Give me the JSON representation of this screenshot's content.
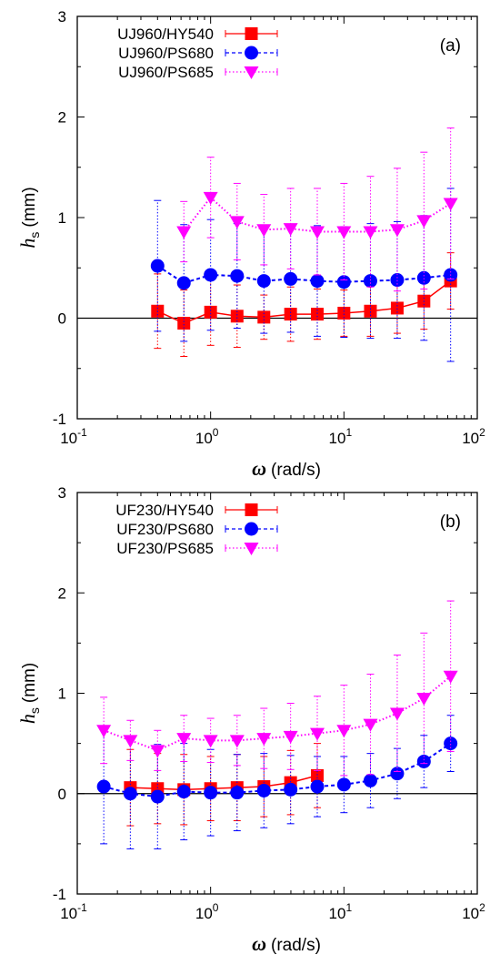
{
  "chart_data": [
    {
      "type": "scatter",
      "panel_label": "(a)",
      "xlabel": "ω",
      "xlabel_unit": "(rad/s)",
      "ylabel": "h",
      "ylabel_sub": "s",
      "ylabel_unit": "(mm)",
      "x_scale": "log",
      "xlim": [
        0.1,
        100
      ],
      "ylim": [
        -1,
        3
      ],
      "yticks": [
        "-1",
        "0",
        "1",
        "2",
        "3"
      ],
      "xticks": [
        {
          "base": "10",
          "exp": "-1"
        },
        {
          "base": "10",
          "exp": "0"
        },
        {
          "base": "10",
          "exp": "1"
        },
        {
          "base": "10",
          "exp": "2"
        }
      ],
      "legend_position": "top-left",
      "reference_line_y": 0,
      "series": [
        {
          "name": "UJ960/HY540",
          "color": "#ff0000",
          "marker": "square",
          "line": "solid",
          "x": [
            0.4,
            0.63,
            1.0,
            1.58,
            2.51,
            3.98,
            6.31,
            10.0,
            15.8,
            25.1,
            39.8,
            63.1
          ],
          "y": [
            0.07,
            -0.05,
            0.06,
            0.02,
            0.01,
            0.04,
            0.04,
            0.05,
            0.07,
            0.1,
            0.17,
            0.37
          ],
          "err": [
            0.37,
            0.33,
            0.33,
            0.31,
            0.22,
            0.27,
            0.25,
            0.23,
            0.25,
            0.25,
            0.28,
            0.28
          ]
        },
        {
          "name": "UJ960/PS680",
          "color": "#0000ff",
          "marker": "circle",
          "line": "dashed",
          "x": [
            0.4,
            0.63,
            1.0,
            1.58,
            2.51,
            3.98,
            6.31,
            10.0,
            15.8,
            25.1,
            39.8,
            63.1
          ],
          "y": [
            0.52,
            0.35,
            0.43,
            0.42,
            0.37,
            0.39,
            0.37,
            0.36,
            0.37,
            0.38,
            0.4,
            0.43
          ],
          "err": [
            0.65,
            0.58,
            0.55,
            0.52,
            0.52,
            0.53,
            0.55,
            0.55,
            0.57,
            0.58,
            0.62,
            0.86
          ]
        },
        {
          "name": "UJ960/PS685",
          "color": "#ff00ff",
          "marker": "triangle-down",
          "line": "dotted",
          "x": [
            0.63,
            1.0,
            1.58,
            2.51,
            3.98,
            6.31,
            10.0,
            15.8,
            25.1,
            39.8,
            63.1
          ],
          "y": [
            0.86,
            1.2,
            0.96,
            0.88,
            0.89,
            0.86,
            0.86,
            0.86,
            0.88,
            0.97,
            1.14
          ],
          "err": [
            0.3,
            0.4,
            0.38,
            0.35,
            0.4,
            0.43,
            0.48,
            0.55,
            0.61,
            0.68,
            0.75
          ]
        }
      ]
    },
    {
      "type": "scatter",
      "panel_label": "(b)",
      "xlabel": "ω",
      "xlabel_unit": "(rad/s)",
      "ylabel": "h",
      "ylabel_sub": "s",
      "ylabel_unit": "(mm)",
      "x_scale": "log",
      "xlim": [
        0.1,
        100
      ],
      "ylim": [
        -1,
        3
      ],
      "yticks": [
        "-1",
        "0",
        "1",
        "2",
        "3"
      ],
      "xticks": [
        {
          "base": "10",
          "exp": "-1"
        },
        {
          "base": "10",
          "exp": "0"
        },
        {
          "base": "10",
          "exp": "1"
        },
        {
          "base": "10",
          "exp": "2"
        }
      ],
      "legend_position": "top-left",
      "reference_line_y": 0,
      "series": [
        {
          "name": "UF230/HY540",
          "color": "#ff0000",
          "marker": "square",
          "line": "solid",
          "x": [
            0.25,
            0.4,
            0.63,
            1.0,
            1.58,
            2.51,
            3.98,
            6.31
          ],
          "y": [
            0.06,
            0.05,
            0.04,
            0.05,
            0.06,
            0.07,
            0.11,
            0.18
          ],
          "err": [
            0.38,
            0.35,
            0.35,
            0.32,
            0.33,
            0.3,
            0.32,
            0.32
          ]
        },
        {
          "name": "UF230/PS680",
          "color": "#0000ff",
          "marker": "circle",
          "line": "dashed",
          "x": [
            0.158,
            0.25,
            0.4,
            0.63,
            1.0,
            1.58,
            2.51,
            3.98,
            6.31,
            10.0,
            15.8,
            25.1,
            39.8,
            63.1
          ],
          "y": [
            0.07,
            0.0,
            -0.03,
            0.02,
            0.01,
            0.01,
            0.03,
            0.04,
            0.07,
            0.09,
            0.13,
            0.2,
            0.32,
            0.5
          ],
          "err": [
            0.57,
            0.55,
            0.52,
            0.48,
            0.43,
            0.38,
            0.37,
            0.34,
            0.3,
            0.28,
            0.27,
            0.25,
            0.26,
            0.28
          ]
        },
        {
          "name": "UF230/PS685",
          "color": "#ff00ff",
          "marker": "triangle-down",
          "line": "dotted",
          "x": [
            0.158,
            0.25,
            0.4,
            0.63,
            1.0,
            1.58,
            2.51,
            3.98,
            6.31,
            10.0,
            15.8,
            25.1,
            39.8,
            63.1
          ],
          "y": [
            0.63,
            0.53,
            0.43,
            0.55,
            0.53,
            0.53,
            0.55,
            0.57,
            0.6,
            0.63,
            0.69,
            0.8,
            0.95,
            1.17
          ],
          "err": [
            0.33,
            0.2,
            0.2,
            0.23,
            0.22,
            0.25,
            0.3,
            0.33,
            0.37,
            0.45,
            0.5,
            0.58,
            0.65,
            0.75
          ]
        }
      ]
    }
  ]
}
